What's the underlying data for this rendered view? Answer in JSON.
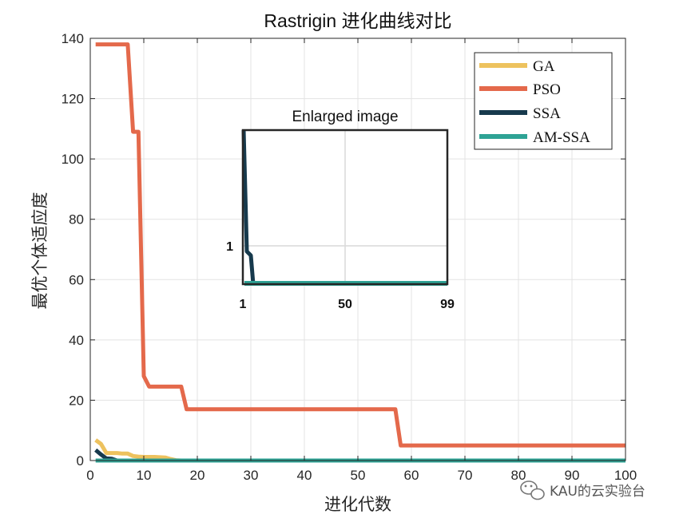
{
  "chart_data": {
    "type": "line",
    "title": "Rastrigin 进化曲线对比",
    "xlabel": "进化代数",
    "ylabel": "最优个体适应度",
    "xlim": [
      0,
      100
    ],
    "ylim": [
      0,
      140
    ],
    "xticks": [
      0,
      10,
      20,
      30,
      40,
      50,
      60,
      70,
      80,
      90,
      100
    ],
    "yticks": [
      0,
      20,
      40,
      60,
      80,
      100,
      120,
      140
    ],
    "grid": true,
    "legend_position": "top-right",
    "series": [
      {
        "name": "GA",
        "color": "#EDC25E",
        "points": [
          [
            1,
            6.8
          ],
          [
            2,
            5.5
          ],
          [
            3,
            2.5
          ],
          [
            4,
            2.5
          ],
          [
            5,
            2.5
          ],
          [
            6,
            2.3
          ],
          [
            7,
            2.3
          ],
          [
            8,
            1.5
          ],
          [
            9,
            1.3
          ],
          [
            10,
            1.2
          ],
          [
            12,
            1.2
          ],
          [
            14,
            1.0
          ],
          [
            15,
            0.5
          ],
          [
            16,
            0.1
          ],
          [
            17,
            0
          ],
          [
            100,
            0
          ]
        ]
      },
      {
        "name": "PSO",
        "color": "#E4694B",
        "points": [
          [
            1,
            138
          ],
          [
            7,
            138
          ],
          [
            8,
            109
          ],
          [
            9,
            109
          ],
          [
            10,
            28
          ],
          [
            11,
            24.5
          ],
          [
            17,
            24.5
          ],
          [
            18,
            17
          ],
          [
            57,
            17
          ],
          [
            58,
            5
          ],
          [
            100,
            5
          ]
        ]
      },
      {
        "name": "SSA",
        "color": "#173A4D",
        "points": [
          [
            1,
            3.5
          ],
          [
            2,
            2.0
          ],
          [
            3,
            0.7
          ],
          [
            4,
            0.6
          ],
          [
            5,
            0
          ],
          [
            100,
            0
          ]
        ]
      },
      {
        "name": "AM-SSA",
        "color": "#2EA395",
        "points": [
          [
            1,
            0
          ],
          [
            100,
            0
          ]
        ]
      }
    ],
    "inset": {
      "title": "Enlarged image",
      "x_tick_labels": [
        "1",
        "50",
        "99"
      ],
      "y_tick_labels": [
        "1"
      ]
    }
  },
  "watermark": {
    "text": "KAU的云实验台",
    "icon": "wechat-icon"
  }
}
